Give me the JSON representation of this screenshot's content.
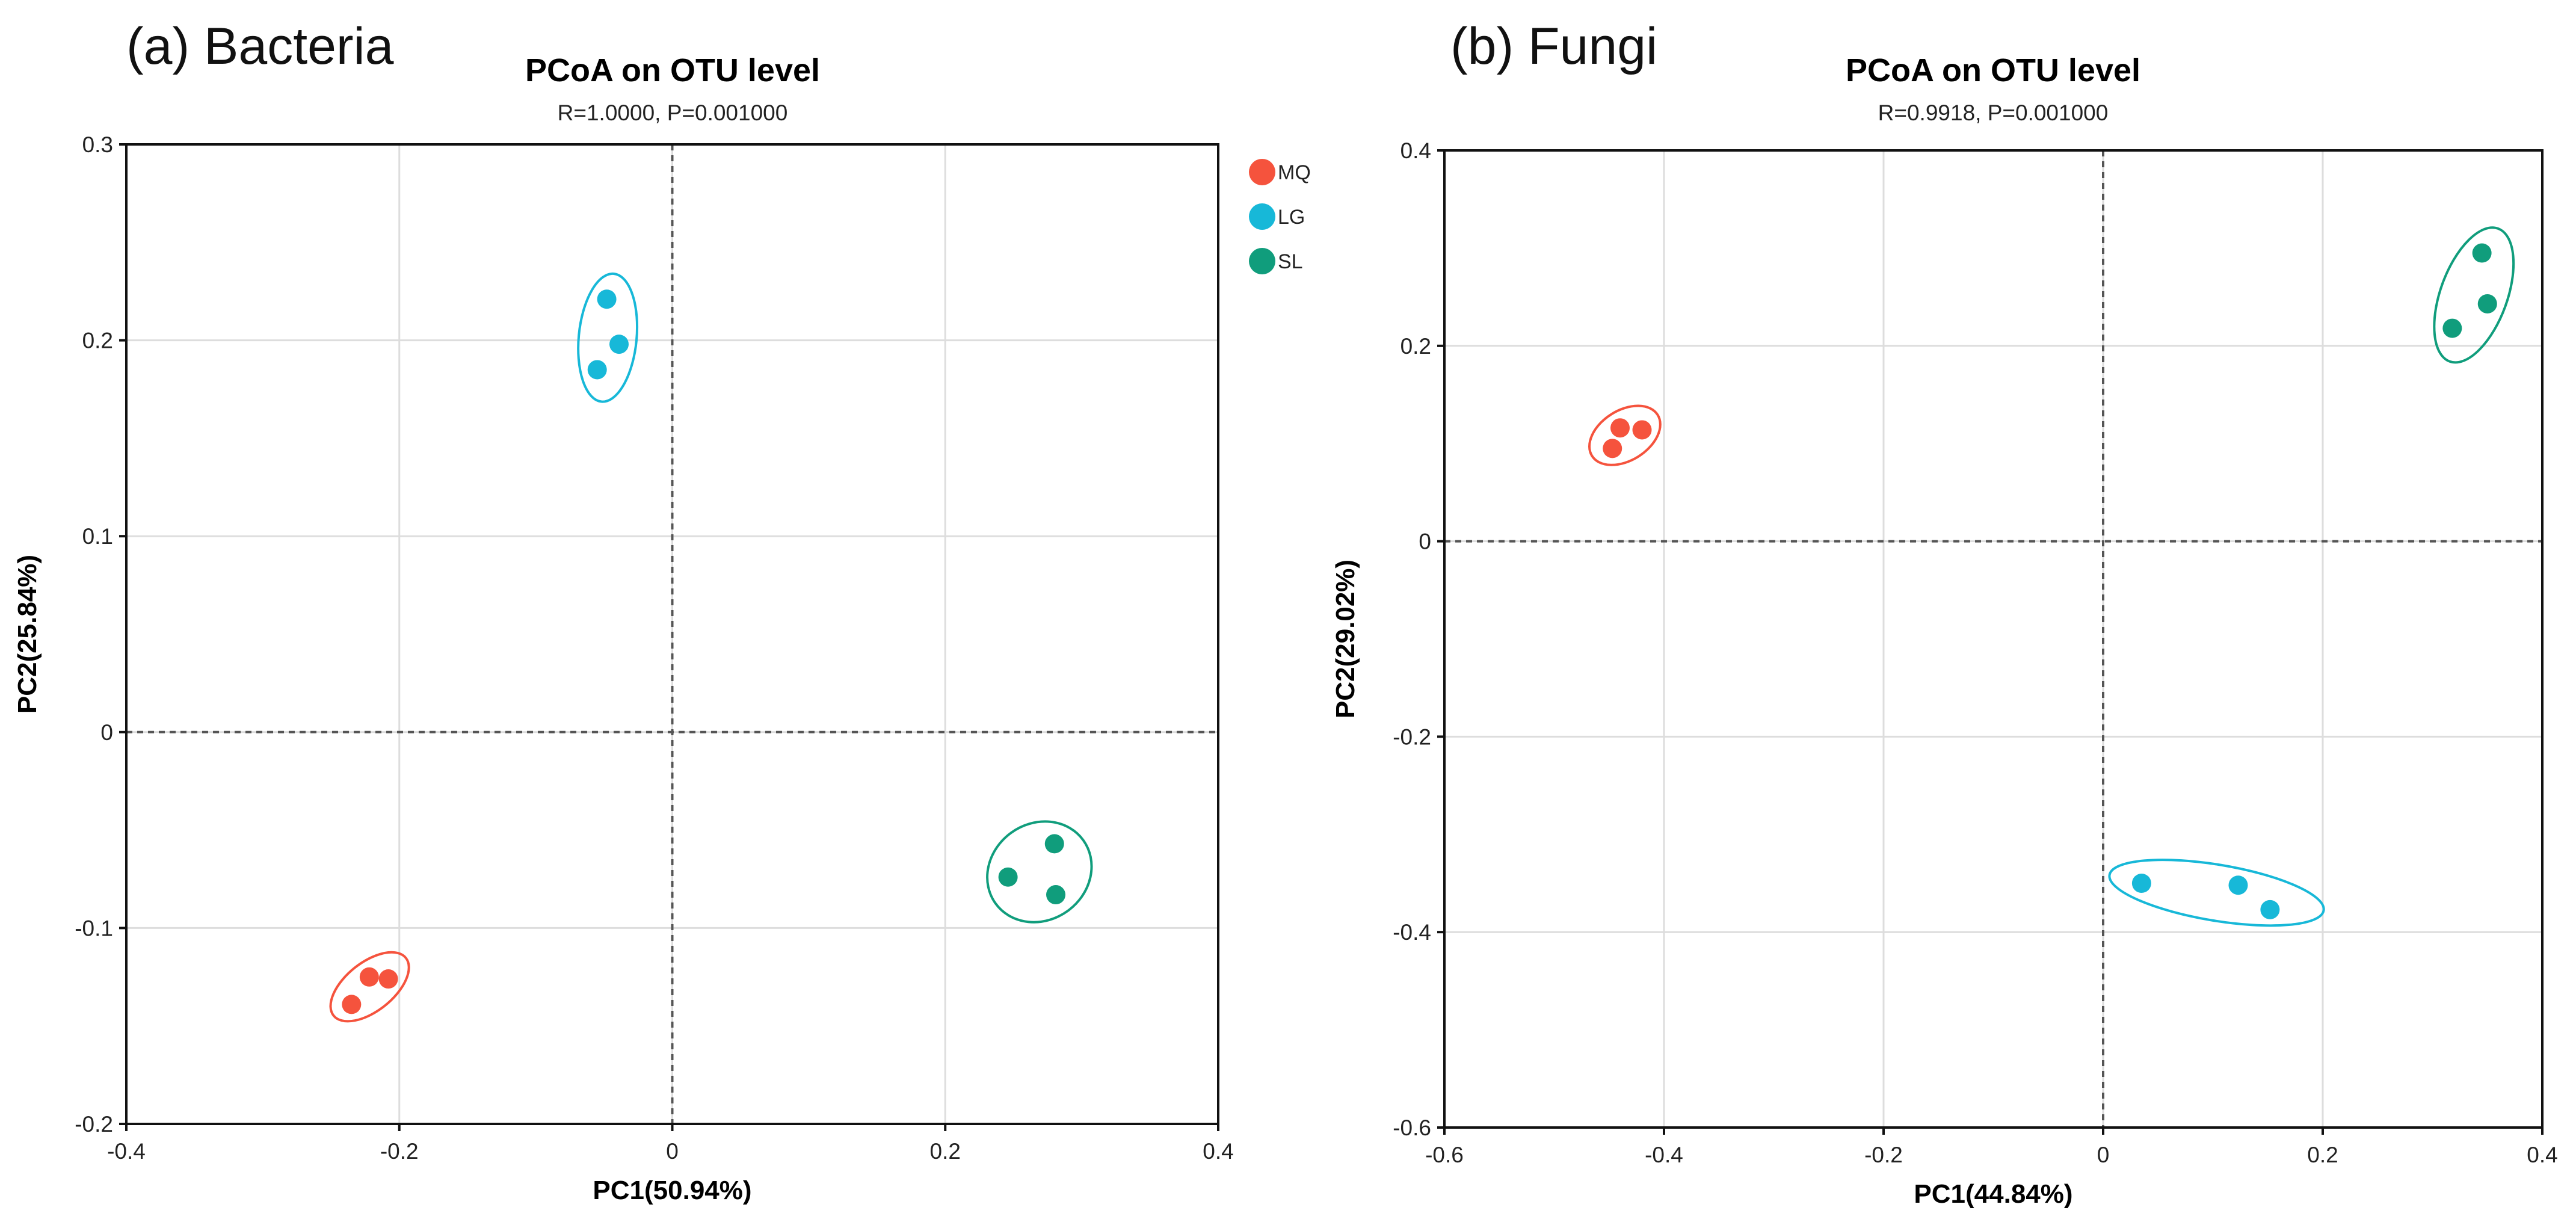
{
  "chart_data": [
    {
      "type": "scatter",
      "panel_label": "(a) Bacteria",
      "title": "PCoA on OTU level",
      "subtitle": "R=1.0000, P=0.001000",
      "xlabel": "PC1(50.94%)",
      "ylabel": "PC2(25.84%)",
      "xlim": [
        -0.4,
        0.4
      ],
      "ylim": [
        -0.2,
        0.3
      ],
      "xticks": [
        -0.4,
        -0.2,
        0,
        0.2,
        0.4
      ],
      "xtick_labels": [
        "-0.4",
        "-0.2",
        "0",
        "0.2",
        "0.4"
      ],
      "yticks": [
        -0.2,
        -0.1,
        0,
        0.1,
        0.2,
        0.3
      ],
      "ytick_labels": [
        "-0.2",
        "-0.1",
        "0",
        "0.1",
        "0.2",
        "0.3"
      ],
      "grid": true,
      "legend_position": "right",
      "series": [
        {
          "name": "MQ",
          "color": "#f5533d",
          "x": [
            -0.235,
            -0.222,
            -0.208
          ],
          "y": [
            -0.139,
            -0.125,
            -0.126
          ]
        },
        {
          "name": "LG",
          "color": "#17b8d8",
          "x": [
            -0.048,
            -0.039,
            -0.055
          ],
          "y": [
            0.221,
            0.198,
            0.185
          ]
        },
        {
          "name": "SL",
          "color": "#109d7c",
          "x": [
            0.246,
            0.28,
            0.281
          ],
          "y": [
            -0.074,
            -0.057,
            -0.083
          ]
        }
      ]
    },
    {
      "type": "scatter",
      "panel_label": "(b) Fungi",
      "title": "PCoA on OTU level",
      "subtitle": "R=0.9918, P=0.001000",
      "xlabel": "PC1(44.84%)",
      "ylabel": "PC2(29.02%)",
      "xlim": [
        -0.6,
        0.4
      ],
      "ylim": [
        -0.6,
        0.4
      ],
      "xticks": [
        -0.6,
        -0.4,
        -0.2,
        0,
        0.2,
        0.4
      ],
      "xtick_labels": [
        "-0.6",
        "-0.4",
        "-0.2",
        "0",
        "0.2",
        "0.4"
      ],
      "yticks": [
        -0.6,
        -0.4,
        -0.2,
        0,
        0.2,
        0.4
      ],
      "ytick_labels": [
        "-0.6",
        "-0.4",
        "-0.2",
        "0",
        "0.2",
        "0.4"
      ],
      "grid": true,
      "series": [
        {
          "name": "MQ",
          "color": "#f5533d",
          "x": [
            -0.44,
            -0.42,
            -0.447
          ],
          "y": [
            0.116,
            0.114,
            0.095
          ]
        },
        {
          "name": "LG",
          "color": "#17b8d8",
          "x": [
            0.035,
            0.123,
            0.152
          ],
          "y": [
            -0.35,
            -0.352,
            -0.377
          ]
        },
        {
          "name": "SL",
          "color": "#109d7c",
          "x": [
            0.345,
            0.35,
            0.318
          ],
          "y": [
            0.295,
            0.243,
            0.218
          ]
        }
      ]
    }
  ]
}
